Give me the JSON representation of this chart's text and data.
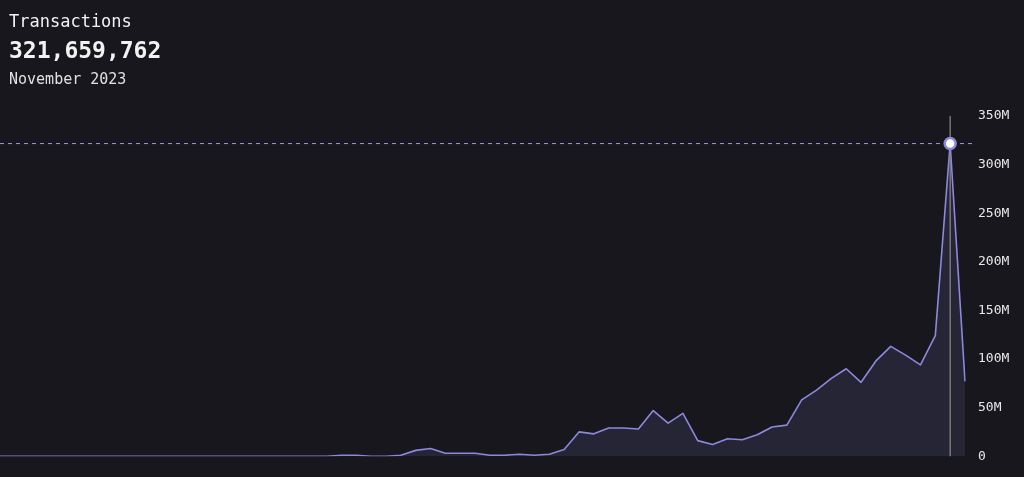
{
  "chart_data": {
    "type": "area",
    "title": "Transactions",
    "subtitle": "321,659,762",
    "annotations": [
      "November 2023"
    ],
    "categories": [
      null,
      null,
      null,
      null,
      null,
      null,
      null,
      null,
      null,
      null,
      null,
      null,
      null,
      null,
      null,
      null,
      null,
      null,
      null,
      null,
      null,
      null,
      null,
      null,
      null,
      null,
      null,
      null,
      null,
      null,
      null,
      null,
      null,
      null,
      null,
      null,
      null,
      null,
      null,
      null,
      null,
      null,
      null,
      null,
      null,
      null,
      null,
      null,
      null,
      null,
      null,
      null,
      null,
      null,
      null,
      null,
      null,
      null,
      null,
      null,
      null,
      null,
      null,
      null,
      null,
      null
    ],
    "series": [
      {
        "color": "#8c88dc",
        "values": [
          0,
          0,
          0,
          0,
          0,
          0,
          0,
          0,
          0,
          0,
          0,
          0,
          0,
          0,
          0,
          0,
          0,
          0,
          0,
          0,
          0,
          0,
          0,
          1,
          1,
          0,
          0,
          1,
          6,
          8,
          3,
          3,
          3,
          1,
          1,
          2,
          1,
          2,
          7,
          25,
          23,
          29,
          29,
          28,
          47,
          34,
          44,
          16,
          12,
          18,
          17,
          22,
          30,
          32,
          58,
          68,
          80,
          90,
          76,
          98,
          113,
          104,
          94,
          124,
          321.659762,
          77
        ]
      }
    ],
    "ylim": [
      0,
      350
    ],
    "yticks": [
      0,
      {
        "value": 50,
        "label": "50M"
      },
      {
        "value": 100,
        "label": "100M"
      },
      {
        "value": 150,
        "label": "150M"
      },
      {
        "value": 200,
        "label": "200M"
      },
      {
        "value": 250,
        "label": "250M"
      },
      {
        "value": 300,
        "label": "300M"
      },
      {
        "value": 350,
        "label": "350M"
      }
    ],
    "ref_lines": [
      {
        "axis": "y",
        "value": 321.659762,
        "color": "#9d98e0",
        "line_style": "dashed"
      }
    ],
    "legend": false,
    "marker": "none"
  }
}
